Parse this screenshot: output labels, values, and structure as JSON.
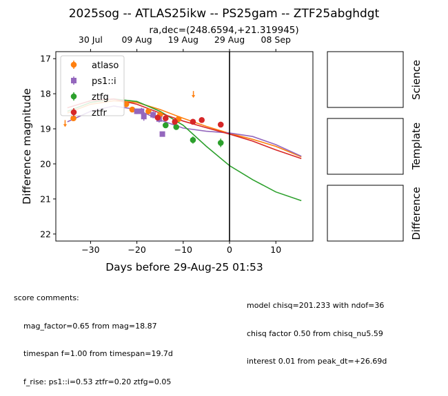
{
  "figure": {
    "title": "2025sog -- ATLAS25ikw -- PS25gam -- ZTF25abghdgt",
    "subtitle": "ra,dec=(248.6594,+21.319945)",
    "panel_labels": [
      "Science",
      "Template",
      "Difference"
    ]
  },
  "chart_data": {
    "type": "scatter",
    "xlabel": "Days before 29-Aug-25 01:53",
    "ylabel": "Difference magnitude",
    "xlim": [
      -37.5,
      18
    ],
    "ylim": [
      22.2,
      16.8
    ],
    "y_inverted": true,
    "xticks": [
      -30,
      -20,
      -10,
      0,
      10
    ],
    "xtick_labels": [
      "−30",
      "−20",
      "−10",
      "0",
      "10"
    ],
    "yticks": [
      17,
      18,
      19,
      20,
      21,
      22
    ],
    "ytick_labels": [
      "17",
      "18",
      "19",
      "20",
      "21",
      "22"
    ],
    "top_axis": {
      "ticks": [
        -30,
        -20,
        -10,
        0,
        10
      ],
      "labels": [
        "30 Jul",
        "09 Aug",
        "19 Aug",
        "29 Aug",
        "08 Sep"
      ]
    },
    "vline_x": 0,
    "legend_position": "top-left",
    "grid": false,
    "series": [
      {
        "name": "atlaso",
        "color": "#ff7f0e",
        "marker": "circle",
        "points": [
          {
            "x": -33.7,
            "y": 18.7,
            "err": 0.07
          },
          {
            "x": -22.3,
            "y": 18.3,
            "err": 0.08
          },
          {
            "x": -21.0,
            "y": 18.45,
            "err": 0.07
          },
          {
            "x": -17.5,
            "y": 18.5,
            "err": 0.08
          },
          {
            "x": -15.0,
            "y": 18.6,
            "err": 0.09
          },
          {
            "x": -11.0,
            "y": 18.72,
            "err": 0.08
          }
        ],
        "upper_limits": [
          {
            "x": -35.5,
            "y": 18.85
          },
          {
            "x": -22.8,
            "y": 18.2
          },
          {
            "x": -7.8,
            "y": 18.02
          }
        ],
        "model": [
          {
            "x": -35.0,
            "y": 18.55
          },
          {
            "x": -30.0,
            "y": 18.3
          },
          {
            "x": -25.0,
            "y": 18.2
          },
          {
            "x": -20.0,
            "y": 18.25
          },
          {
            "x": -15.0,
            "y": 18.45
          },
          {
            "x": -10.0,
            "y": 18.7
          },
          {
            "x": -5.0,
            "y": 18.93
          },
          {
            "x": 0.0,
            "y": 19.13
          },
          {
            "x": 5.0,
            "y": 19.3
          },
          {
            "x": 10.0,
            "y": 19.5
          },
          {
            "x": 15.5,
            "y": 19.8
          }
        ]
      },
      {
        "name": "ps1::i",
        "color": "#9467bd",
        "marker": "square",
        "points": [
          {
            "x": -20.0,
            "y": 18.5,
            "err": 0.08
          },
          {
            "x": -19.0,
            "y": 18.5,
            "err": 0.1
          },
          {
            "x": -18.5,
            "y": 18.65,
            "err": 0.12
          },
          {
            "x": -16.5,
            "y": 18.6,
            "err": 0.1
          },
          {
            "x": -15.2,
            "y": 18.72,
            "err": 0.1
          },
          {
            "x": -14.5,
            "y": 19.15,
            "err": 0.05
          }
        ],
        "upper_limits": [],
        "model": [
          {
            "x": -35.0,
            "y": 18.8
          },
          {
            "x": -30.0,
            "y": 18.5
          },
          {
            "x": -25.0,
            "y": 18.35
          },
          {
            "x": -20.0,
            "y": 18.45
          },
          {
            "x": -15.0,
            "y": 18.75
          },
          {
            "x": -10.0,
            "y": 18.98
          },
          {
            "x": -5.0,
            "y": 19.07
          },
          {
            "x": 0.0,
            "y": 19.12
          },
          {
            "x": 5.0,
            "y": 19.22
          },
          {
            "x": 10.0,
            "y": 19.45
          },
          {
            "x": 15.5,
            "y": 19.78
          }
        ]
      },
      {
        "name": "ztfg",
        "color": "#2ca02c",
        "marker": "circle",
        "points": [
          {
            "x": -13.8,
            "y": 18.9,
            "err": 0.06
          },
          {
            "x": -11.5,
            "y": 18.95,
            "err": 0.07
          },
          {
            "x": -7.9,
            "y": 19.32,
            "err": 0.1
          },
          {
            "x": -1.9,
            "y": 19.4,
            "err": 0.12
          }
        ],
        "upper_limits": [],
        "model": [
          {
            "x": -35.0,
            "y": 18.5
          },
          {
            "x": -30.0,
            "y": 18.25
          },
          {
            "x": -25.0,
            "y": 18.15
          },
          {
            "x": -20.0,
            "y": 18.22
          },
          {
            "x": -15.0,
            "y": 18.5
          },
          {
            "x": -10.0,
            "y": 18.9
          },
          {
            "x": -5.0,
            "y": 19.5
          },
          {
            "x": 0.0,
            "y": 20.05
          },
          {
            "x": 5.0,
            "y": 20.45
          },
          {
            "x": 10.0,
            "y": 20.8
          },
          {
            "x": 15.5,
            "y": 21.05
          }
        ]
      },
      {
        "name": "ztfr",
        "color": "#d62728",
        "marker": "circle",
        "points": [
          {
            "x": -15.5,
            "y": 18.68,
            "err": 0.07
          },
          {
            "x": -13.8,
            "y": 18.7,
            "err": 0.06
          },
          {
            "x": -11.8,
            "y": 18.8,
            "err": 0.07
          },
          {
            "x": -7.9,
            "y": 18.8,
            "err": 0.08
          },
          {
            "x": -6.0,
            "y": 18.75,
            "err": 0.07
          },
          {
            "x": -1.9,
            "y": 18.88,
            "err": 0.08
          }
        ],
        "upper_limits": [],
        "model": [
          {
            "x": -35.0,
            "y": 18.4
          },
          {
            "x": -30.0,
            "y": 18.2
          },
          {
            "x": -25.0,
            "y": 18.15
          },
          {
            "x": -20.0,
            "y": 18.3
          },
          {
            "x": -15.0,
            "y": 18.55
          },
          {
            "x": -10.0,
            "y": 18.78
          },
          {
            "x": -5.0,
            "y": 18.97
          },
          {
            "x": 0.0,
            "y": 19.15
          },
          {
            "x": 5.0,
            "y": 19.35
          },
          {
            "x": 10.0,
            "y": 19.6
          },
          {
            "x": 15.5,
            "y": 19.85
          }
        ]
      }
    ]
  },
  "score_comments": {
    "heading": "score comments:",
    "left": [
      "mag_factor=0.65 from mag=18.87",
      "timespan f=1.00 from timespan=19.7d",
      "f_rise: ps1::i=0.53 ztfr=0.20 ztfg=0.05"
    ],
    "right": [
      "model chisq=201.233 with ndof=36",
      "chisq factor 0.50 from chisq_nu5.59",
      "interest 0.01 from peak_dt=+26.69d"
    ]
  }
}
